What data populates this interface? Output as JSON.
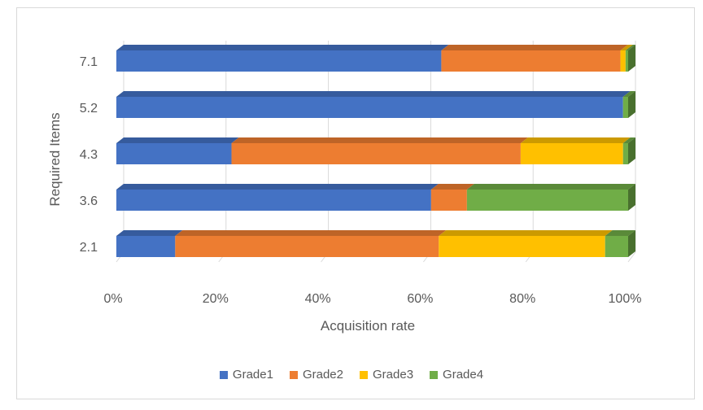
{
  "chart_data": {
    "type": "bar",
    "orientation": "horizontal",
    "stacked": "percent",
    "three_d": true,
    "categories": [
      "2.1",
      "3.6",
      "4.3",
      "5.2",
      "7.1"
    ],
    "series": [
      {
        "name": "Grade1",
        "color": "#4472C4",
        "values": [
          11.5,
          61.5,
          22.5,
          99.0,
          63.5
        ]
      },
      {
        "name": "Grade2",
        "color": "#ED7D31",
        "values": [
          51.5,
          7.0,
          56.5,
          0.0,
          35.0
        ]
      },
      {
        "name": "Grade3",
        "color": "#FFC000",
        "values": [
          32.5,
          0.0,
          20.0,
          0.0,
          1.0
        ]
      },
      {
        "name": "Grade4",
        "color": "#70AD47",
        "values": [
          4.5,
          31.5,
          1.0,
          1.0,
          0.5
        ]
      }
    ],
    "xlabel": "Acquisition rate",
    "ylabel": "Required Items",
    "x_ticks": [
      "0%",
      "20%",
      "40%",
      "60%",
      "80%",
      "100%"
    ],
    "xlim": [
      0,
      100
    ],
    "grid": "vertical",
    "legend": "bottom"
  }
}
